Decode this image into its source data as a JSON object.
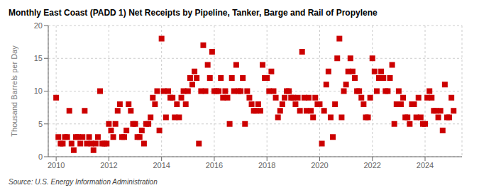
{
  "chart_data": {
    "type": "scatter",
    "title": "Monthly East Coast (PADD 1) Net Receipts by Pipeline, Tanker, Barge and Rail of Propylene",
    "ylabel": "Thousand Barrels per Day",
    "source": "Source: U.S. Energy Information Administration",
    "color": "#cc0000",
    "marker": "square",
    "grid": true,
    "xlim": [
      2009.7,
      2025.4
    ],
    "xticks": [
      2010,
      2012,
      2014,
      2016,
      2018,
      2020,
      2022,
      2024
    ],
    "ylim": [
      0,
      20
    ],
    "yticks": [
      0,
      5,
      10,
      15,
      20
    ],
    "x": [
      2010.0,
      2010.083,
      2010.167,
      2010.25,
      2010.333,
      2010.417,
      2010.5,
      2010.583,
      2010.667,
      2010.75,
      2010.833,
      2010.917,
      2011.0,
      2011.083,
      2011.167,
      2011.25,
      2011.333,
      2011.417,
      2011.5,
      2011.583,
      2011.667,
      2011.75,
      2011.833,
      2011.917,
      2012.0,
      2012.083,
      2012.167,
      2012.25,
      2012.333,
      2012.417,
      2012.5,
      2012.583,
      2012.667,
      2012.75,
      2012.833,
      2012.917,
      2013.0,
      2013.083,
      2013.167,
      2013.25,
      2013.333,
      2013.417,
      2013.5,
      2013.583,
      2013.667,
      2013.75,
      2013.833,
      2013.917,
      2014.0,
      2014.083,
      2014.167,
      2014.25,
      2014.333,
      2014.417,
      2014.5,
      2014.583,
      2014.667,
      2014.75,
      2014.833,
      2014.917,
      2015.0,
      2015.083,
      2015.167,
      2015.25,
      2015.333,
      2015.417,
      2015.5,
      2015.583,
      2015.667,
      2015.75,
      2015.833,
      2015.917,
      2016.0,
      2016.083,
      2016.167,
      2016.25,
      2016.333,
      2016.417,
      2016.5,
      2016.583,
      2016.667,
      2016.75,
      2016.833,
      2016.917,
      2017.0,
      2017.083,
      2017.167,
      2017.25,
      2017.333,
      2017.417,
      2017.5,
      2017.583,
      2017.667,
      2017.75,
      2017.833,
      2017.917,
      2018.0,
      2018.083,
      2018.167,
      2018.25,
      2018.333,
      2018.417,
      2018.5,
      2018.583,
      2018.667,
      2018.75,
      2018.833,
      2018.917,
      2019.0,
      2019.083,
      2019.167,
      2019.25,
      2019.333,
      2019.417,
      2019.5,
      2019.583,
      2019.667,
      2019.75,
      2019.833,
      2019.917,
      2020.0,
      2020.083,
      2020.167,
      2020.25,
      2020.333,
      2020.417,
      2020.5,
      2020.583,
      2020.667,
      2020.75,
      2020.833,
      2020.917,
      2021.0,
      2021.083,
      2021.167,
      2021.25,
      2021.333,
      2021.417,
      2021.5,
      2021.583,
      2021.667,
      2021.75,
      2021.833,
      2021.917,
      2022.0,
      2022.083,
      2022.167,
      2022.25,
      2022.333,
      2022.417,
      2022.5,
      2022.583,
      2022.667,
      2022.75,
      2022.833,
      2022.917,
      2023.0,
      2023.083,
      2023.167,
      2023.25,
      2023.333,
      2023.417,
      2023.5,
      2023.583,
      2023.667,
      2023.75,
      2023.833,
      2023.917,
      2024.0,
      2024.083,
      2024.167,
      2024.25,
      2024.333,
      2024.417,
      2024.5,
      2024.583,
      2024.667,
      2024.75,
      2024.833,
      2024.917,
      2025.0,
      2025.083
    ],
    "values": [
      9,
      3,
      2,
      2,
      3,
      3,
      7,
      2,
      1,
      3,
      3,
      2,
      3,
      7,
      2,
      3,
      2,
      1,
      2,
      3,
      10,
      2,
      2,
      2,
      5,
      4,
      3,
      5,
      7,
      8,
      3,
      3,
      4,
      8,
      7,
      5,
      5,
      3,
      3,
      4,
      2,
      5,
      5,
      6,
      9,
      8,
      10,
      4,
      18,
      10,
      6,
      10,
      9,
      9,
      6,
      8,
      6,
      9,
      10,
      8,
      10,
      12,
      11,
      13,
      12,
      2,
      10,
      17,
      10,
      14,
      12,
      16,
      10,
      10,
      10,
      12,
      9,
      10,
      9,
      5,
      12,
      10,
      14,
      10,
      10,
      12,
      5,
      10,
      9,
      8,
      7,
      7,
      8,
      7,
      14,
      12,
      12,
      10,
      13,
      10,
      9,
      6,
      7,
      8,
      9,
      10,
      10,
      9,
      9,
      8,
      9,
      7,
      16,
      9,
      7,
      9,
      7,
      6,
      9,
      8,
      8,
      2,
      7,
      11,
      13,
      6,
      3,
      8,
      15,
      18,
      6,
      10,
      11,
      13,
      15,
      13,
      12,
      10,
      10,
      9,
      8,
      6,
      6,
      9,
      15,
      13,
      10,
      12,
      13,
      12,
      10,
      10,
      12,
      14,
      5,
      8,
      10,
      8,
      9,
      6,
      6,
      5,
      8,
      8,
      6,
      9,
      6,
      5,
      5,
      9,
      10,
      9,
      7,
      7,
      6,
      7,
      4,
      11,
      6,
      6,
      9,
      7
    ]
  }
}
